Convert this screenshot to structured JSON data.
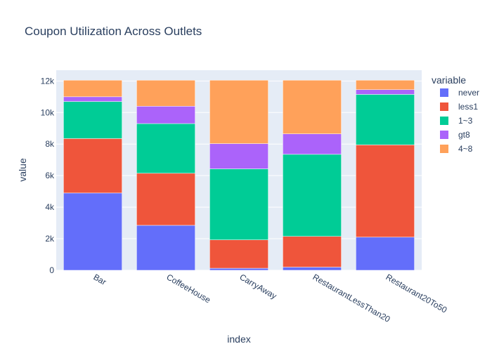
{
  "chart_data": {
    "type": "bar",
    "stacked": true,
    "title": "Coupon Utilization Across Outlets",
    "xlabel": "index",
    "ylabel": "value",
    "ylim": [
      0,
      12684
    ],
    "yticks": [
      0,
      2000,
      4000,
      6000,
      8000,
      10000,
      12000
    ],
    "ytick_labels": [
      "0",
      "2k",
      "4k",
      "6k",
      "8k",
      "10k",
      "12k"
    ],
    "categories": [
      "Bar",
      "CoffeeHouse",
      "CarryAway",
      "RestaurantLessThan20",
      "Restaurant20To50"
    ],
    "legend_title": "variable",
    "legend_position": "right",
    "grid": true,
    "colors": {
      "background": "#e5ecf6",
      "gridline": "#ffffff",
      "text": "#2a3f5f"
    },
    "series": [
      {
        "name": "never",
        "color": "#636efa",
        "values": [
          4900,
          2850,
          130,
          200,
          2100
        ]
      },
      {
        "name": "less1",
        "color": "#ef553b",
        "values": [
          3450,
          3300,
          1800,
          1950,
          5850
        ]
      },
      {
        "name": "1~3",
        "color": "#00cc96",
        "values": [
          2350,
          3150,
          4500,
          5200,
          3200
        ]
      },
      {
        "name": "gt8",
        "color": "#ab63fa",
        "values": [
          300,
          1100,
          1600,
          1300,
          300
        ]
      },
      {
        "name": "4~8",
        "color": "#ffa15a",
        "values": [
          1050,
          1650,
          4020,
          3400,
          600
        ]
      }
    ]
  }
}
